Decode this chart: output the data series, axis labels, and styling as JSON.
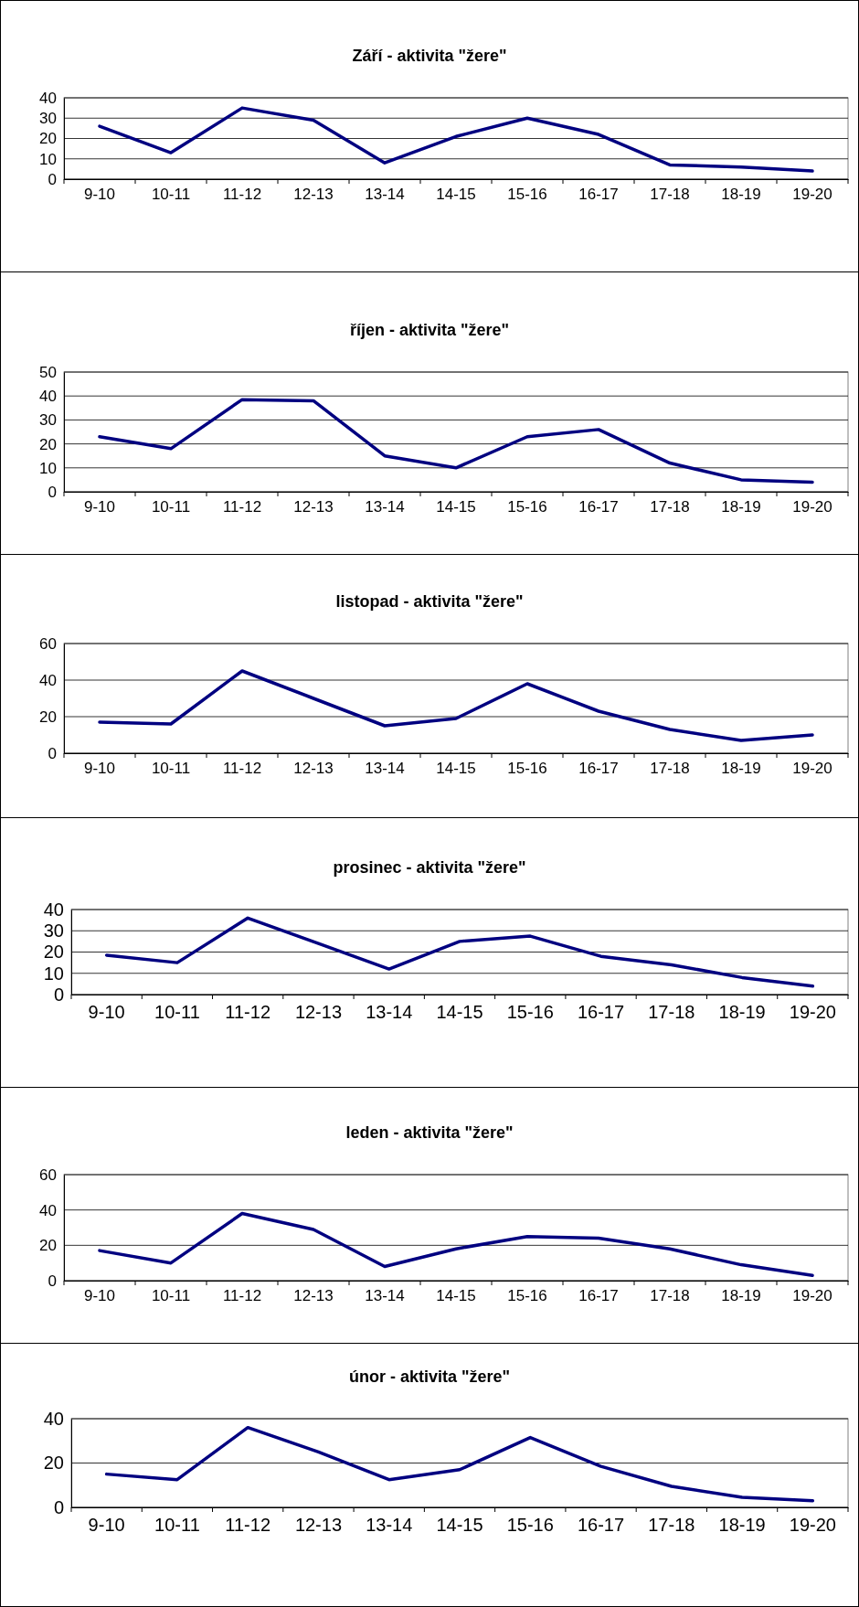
{
  "chart_data": [
    {
      "type": "line",
      "title": "Září - aktivita \"žere\"",
      "categories": [
        "9-10",
        "10-11",
        "11-12",
        "12-13",
        "13-14",
        "14-15",
        "15-16",
        "16-17",
        "17-18",
        "18-19",
        "19-20"
      ],
      "series": [
        {
          "color": "#000080",
          "values": [
            26,
            13,
            35,
            29,
            8,
            21,
            30,
            22,
            7,
            6,
            4
          ]
        }
      ],
      "ylim": [
        0,
        40
      ],
      "yticks": [
        0,
        10,
        20,
        30,
        40
      ],
      "grid": "y",
      "marker": "none",
      "line_style": "solid"
    },
    {
      "type": "line",
      "title": "říjen - aktivita \"žere\"",
      "categories": [
        "9-10",
        "10-11",
        "11-12",
        "12-13",
        "13-14",
        "14-15",
        "15-16",
        "16-17",
        "17-18",
        "18-19",
        "19-20"
      ],
      "series": [
        {
          "color": "#000080",
          "values": [
            23,
            18,
            38.5,
            38,
            15,
            10,
            23,
            26,
            12,
            5,
            4
          ]
        }
      ],
      "ylim": [
        0,
        50
      ],
      "yticks": [
        0,
        10,
        20,
        30,
        40,
        50
      ],
      "grid": "y",
      "marker": "none",
      "line_style": "solid"
    },
    {
      "type": "line",
      "title": "listopad - aktivita \"žere\"",
      "categories": [
        "9-10",
        "10-11",
        "11-12",
        "12-13",
        "13-14",
        "14-15",
        "15-16",
        "16-17",
        "17-18",
        "18-19",
        "19-20"
      ],
      "series": [
        {
          "color": "#000080",
          "values": [
            17,
            16,
            45,
            30,
            15,
            19,
            38,
            23,
            13,
            7,
            10
          ]
        }
      ],
      "ylim": [
        0,
        60
      ],
      "yticks": [
        0,
        20,
        40,
        60
      ],
      "grid": "y",
      "marker": "none",
      "line_style": "solid"
    },
    {
      "type": "line",
      "title": "prosinec - aktivita \"žere\"",
      "categories": [
        "9-10",
        "10-11",
        "11-12",
        "12-13",
        "13-14",
        "14-15",
        "15-16",
        "16-17",
        "17-18",
        "18-19",
        "19-20"
      ],
      "series": [
        {
          "color": "#000080",
          "values": [
            18.5,
            15,
            36,
            24,
            12,
            25,
            27.5,
            18,
            14,
            8,
            4
          ]
        }
      ],
      "ylim": [
        0,
        40
      ],
      "yticks": [
        0,
        10,
        20,
        30,
        40
      ],
      "grid": "y",
      "marker": "none",
      "line_style": "solid"
    },
    {
      "type": "line",
      "title": "leden - aktivita \"žere\"",
      "categories": [
        "9-10",
        "10-11",
        "11-12",
        "12-13",
        "13-14",
        "14-15",
        "15-16",
        "16-17",
        "17-18",
        "18-19",
        "19-20"
      ],
      "series": [
        {
          "color": "#000080",
          "values": [
            17,
            10,
            38,
            29,
            8,
            18,
            25,
            24,
            18,
            9,
            3
          ]
        }
      ],
      "ylim": [
        0,
        60
      ],
      "yticks": [
        0,
        20,
        40,
        60
      ],
      "grid": "y",
      "marker": "none",
      "line_style": "solid"
    },
    {
      "type": "line",
      "title": "únor - aktivita \"žere\"",
      "categories": [
        "9-10",
        "10-11",
        "11-12",
        "12-13",
        "13-14",
        "14-15",
        "15-16",
        "16-17",
        "17-18",
        "18-19",
        "19-20"
      ],
      "series": [
        {
          "color": "#000080",
          "values": [
            15,
            12.5,
            36,
            25,
            12.5,
            17,
            31.5,
            18.5,
            9.5,
            4.5,
            3
          ]
        }
      ],
      "ylim": [
        0,
        40
      ],
      "yticks": [
        0,
        20,
        40
      ],
      "grid": "y",
      "marker": "none",
      "line_style": "solid"
    }
  ]
}
